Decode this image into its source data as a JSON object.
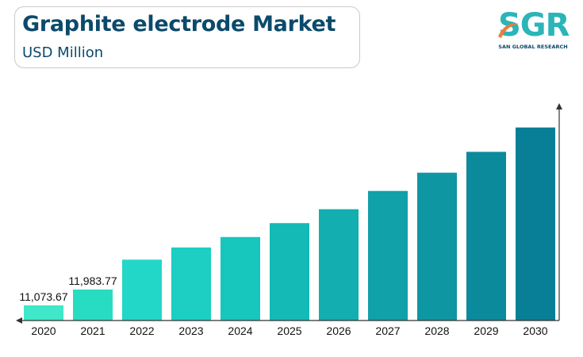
{
  "header": {
    "title": "Graphite electrode Market",
    "subtitle": "USD Million"
  },
  "logo": {
    "mark": "SGR",
    "name": "SAN GLOBAL RESEARCH",
    "icon": "swoosh-icon",
    "colors": {
      "mark": "#2bb5b8",
      "swoosh": "#f07b3a",
      "text": "#0b4a6b"
    }
  },
  "chart_data": {
    "type": "bar",
    "title": "Graphite electrode Market",
    "subtitle": "USD Million",
    "categories": [
      "2020",
      "2021",
      "2022",
      "2023",
      "2024",
      "2025",
      "2026",
      "2027",
      "2028",
      "2029",
      "2030"
    ],
    "values": [
      11073.67,
      11983.77,
      13700,
      14400,
      15000,
      15800,
      16600,
      17650,
      18700,
      19900,
      21300
    ],
    "data_labels": [
      "11,073.67",
      "11,983.77",
      "",
      "",
      "",
      "",
      "",
      "",
      "",
      "",
      ""
    ],
    "xlabel": "",
    "ylabel": "",
    "ylim": [
      10200,
      22700
    ],
    "grid": false,
    "legend": "none",
    "colors": [
      "#3ee8c8",
      "#28dcc2",
      "#22d7c8",
      "#1ccfc2",
      "#17c6bd",
      "#14bab6",
      "#12aeb0",
      "#10a1a9",
      "#0e96a3",
      "#0b8a9c",
      "#087f96"
    ]
  }
}
